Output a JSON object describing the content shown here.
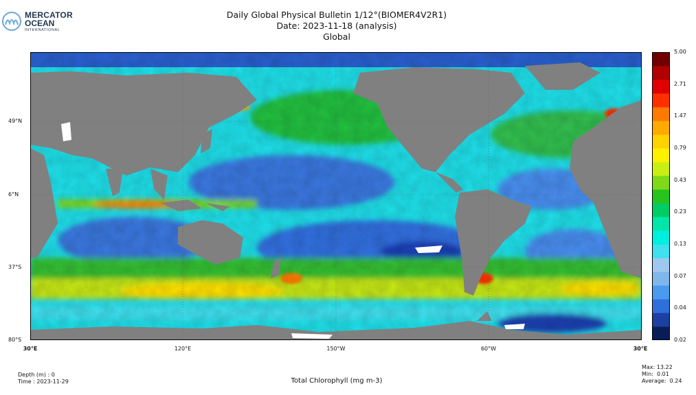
{
  "header": {
    "logo": {
      "line1": "MERCATOR",
      "line2": "OCEAN",
      "line3": "INTERNATIONAL"
    },
    "title_line1": "Daily Global Physical Bulletin 1/12°(BIOMER4V2R1)",
    "title_line2": "Date: 2023-11-18 (analysis)",
    "title_line3": "Global"
  },
  "map": {
    "lat_ticks": [
      "49°N",
      "6°N",
      "37°S",
      "80°S"
    ],
    "lon_ticks": [
      "30°E",
      "120°E",
      "150°W",
      "60°W",
      "30°E"
    ],
    "land_color": "#808080",
    "variable": "Total Chlorophyll (mg m-3)"
  },
  "colorbar": {
    "ticks": [
      "5.00",
      "2.71",
      "1.47",
      "0.79",
      "0.43",
      "0.23",
      "0.13",
      "0.07",
      "0.04",
      "0.02"
    ],
    "scale": "log",
    "range": [
      0.02,
      5.0
    ],
    "colors": [
      "#081d58",
      "#1c3fa0",
      "#2f6fdb",
      "#4a9af0",
      "#7fb7ec",
      "#9fc8ef",
      "#3fe0ef",
      "#00f0e0",
      "#00e6a8",
      "#00cc66",
      "#27c420",
      "#7fd818",
      "#c8ee14",
      "#fff000",
      "#ffd200",
      "#ffaa00",
      "#ff7a00",
      "#ff3000",
      "#e00000",
      "#b00000",
      "#700000"
    ]
  },
  "footer": {
    "depth": "Depth (m) : 0",
    "time": "Time : 2023-11-29",
    "max": "Max: 13.22",
    "min": "Min:  0.01",
    "average": "Average:  0.24"
  }
}
